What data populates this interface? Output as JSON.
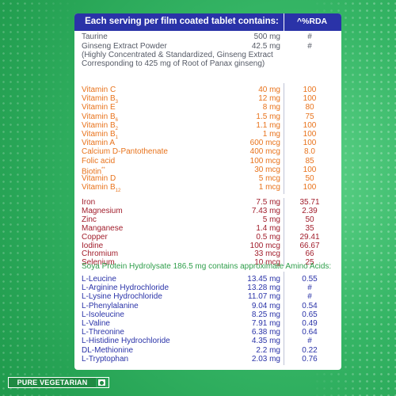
{
  "header": {
    "left": "Each serving per film coated tablet contains:",
    "right": "^%RDA"
  },
  "intro": {
    "taurine": {
      "name": "Taurine",
      "amount": "500 mg",
      "rda": "#"
    },
    "ginseng": {
      "name": "Ginseng Extract Powder",
      "amount": "42.5 mg",
      "rda": "#"
    },
    "ginseng_note_1": "(Highly Concentrated & Standardized, Ginseng Extract",
    "ginseng_note_2": "Corresponding to 425 mg of Root of Panax ginseng)"
  },
  "vitamins": [
    {
      "name": "Vitamin C",
      "sub": "",
      "sup": "",
      "amount": "40 mg",
      "rda": "100"
    },
    {
      "name": "Vitamin B",
      "sub": "3",
      "sup": "",
      "amount": "12 mg",
      "rda": "100"
    },
    {
      "name": "Vitamin E",
      "sub": "",
      "sup": "",
      "amount": "8 mg",
      "rda": "80"
    },
    {
      "name": "Vitamin B",
      "sub": "6",
      "sup": "",
      "amount": "1.5 mg",
      "rda": "75"
    },
    {
      "name": "Vitamin B",
      "sub": "2",
      "sup": "",
      "amount": "1.1 mg",
      "rda": "100"
    },
    {
      "name": "Vitamin B",
      "sub": "1",
      "sup": "",
      "amount": "1 mg",
      "rda": "100"
    },
    {
      "name": "Vitamin A",
      "sub": "",
      "sup": "",
      "amount": "600 mcg",
      "rda": "100"
    },
    {
      "name": "Calcium D-Pantothenate",
      "sub": "",
      "sup": "",
      "amount": "400 mcg",
      "rda": "8.0"
    },
    {
      "name": "Folic acid",
      "sub": "",
      "sup": "",
      "amount": "100 mcg",
      "rda": "85"
    },
    {
      "name": "Biotin",
      "sub": "",
      "sup": "**",
      "amount": "30 mcg",
      "rda": "100"
    },
    {
      "name": "Vitamin D",
      "sub": "",
      "sup": "",
      "amount": "5 mcg",
      "rda": "50"
    },
    {
      "name": "Vitamin B",
      "sub": "12",
      "sup": "",
      "amount": "1 mcg",
      "rda": "100"
    }
  ],
  "minerals": [
    {
      "name": "Iron",
      "amount": "7.5 mg",
      "rda": "35.71"
    },
    {
      "name": "Magnesium",
      "amount": "7.43 mg",
      "rda": "2.39"
    },
    {
      "name": "Zinc",
      "amount": "5 mg",
      "rda": "50"
    },
    {
      "name": "Manganese",
      "amount": "1.4 mg",
      "rda": "35"
    },
    {
      "name": "Copper",
      "amount": "0.5 mg",
      "rda": "29.41"
    },
    {
      "name": "Iodine",
      "amount": "100 mcg",
      "rda": "66.67"
    },
    {
      "name": "Chromium",
      "amount": "33 mcg",
      "rda": "66"
    },
    {
      "name": "Selenium",
      "amount": "10 mcg",
      "rda": "25"
    }
  ],
  "amino_title": "Soya Protein Hydrolysate 186.5 mg contains approximate Amino Acids:",
  "amino_acids": [
    {
      "name": "L-Leucine",
      "amount": "13.45 mg",
      "rda": "0.55"
    },
    {
      "name": "L-Arginine Hydrochloride",
      "amount": "13.28 mg",
      "rda": "#"
    },
    {
      "name": "L-Lysine Hydrochloride",
      "amount": "11.07 mg",
      "rda": "#"
    },
    {
      "name": "L-Phenylalanine",
      "amount": "9.04 mg",
      "rda": "0.54"
    },
    {
      "name": "L-Isoleucine",
      "amount": "8.25 mg",
      "rda": "0.65"
    },
    {
      "name": "L-Valine",
      "amount": "7.91 mg",
      "rda": "0.49"
    },
    {
      "name": "L-Threonine",
      "amount": "6.38 mg",
      "rda": "0.64"
    },
    {
      "name": "L-Histidine Hydrochloride",
      "amount": "4.35 mg",
      "rda": "#"
    },
    {
      "name": "DL-Methionine",
      "amount": "2.2 mg",
      "rda": "0.22"
    },
    {
      "name": "L-Tryptophan",
      "amount": "2.03 mg",
      "rda": "0.76"
    }
  ],
  "footer": {
    "label": "PURE VEGETARIAN"
  },
  "colors": {
    "header_bg": "#2a33a8",
    "vitamin_text": "#e8731c",
    "mineral_text": "#a11d2b",
    "amino_text": "#2a33a8",
    "amino_title": "#2e9e4a",
    "background": "#35b565"
  }
}
